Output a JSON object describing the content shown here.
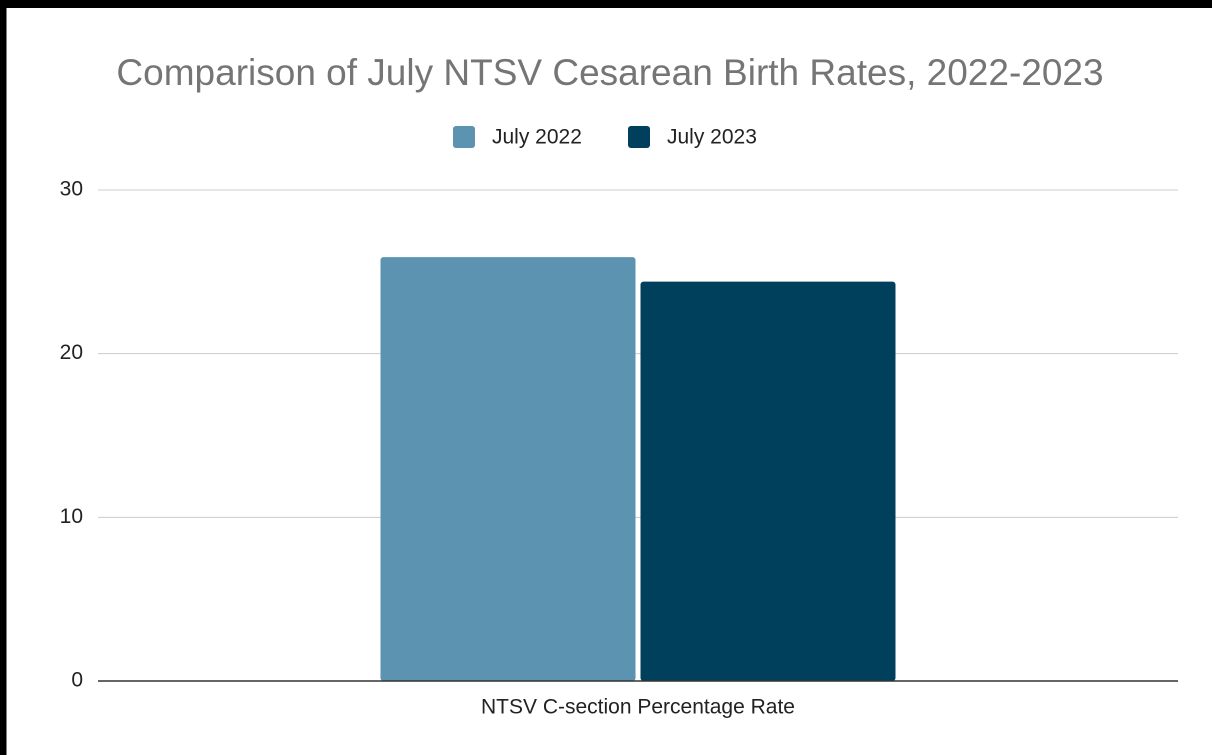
{
  "chart_data": {
    "type": "bar",
    "title": "Comparison of July NTSV Cesarean Birth Rates, 2022-2023",
    "categories": [
      "NTSV C-section Percentage Rate"
    ],
    "series": [
      {
        "name": "July 2022",
        "color": "#5b93b0",
        "values": [
          25.9
        ]
      },
      {
        "name": "July 2023",
        "color": "#00405c",
        "values": [
          24.4
        ]
      }
    ],
    "ylim": [
      0,
      30
    ],
    "yticks": [
      0,
      10,
      20,
      30
    ],
    "grid": true,
    "legend": "top"
  }
}
